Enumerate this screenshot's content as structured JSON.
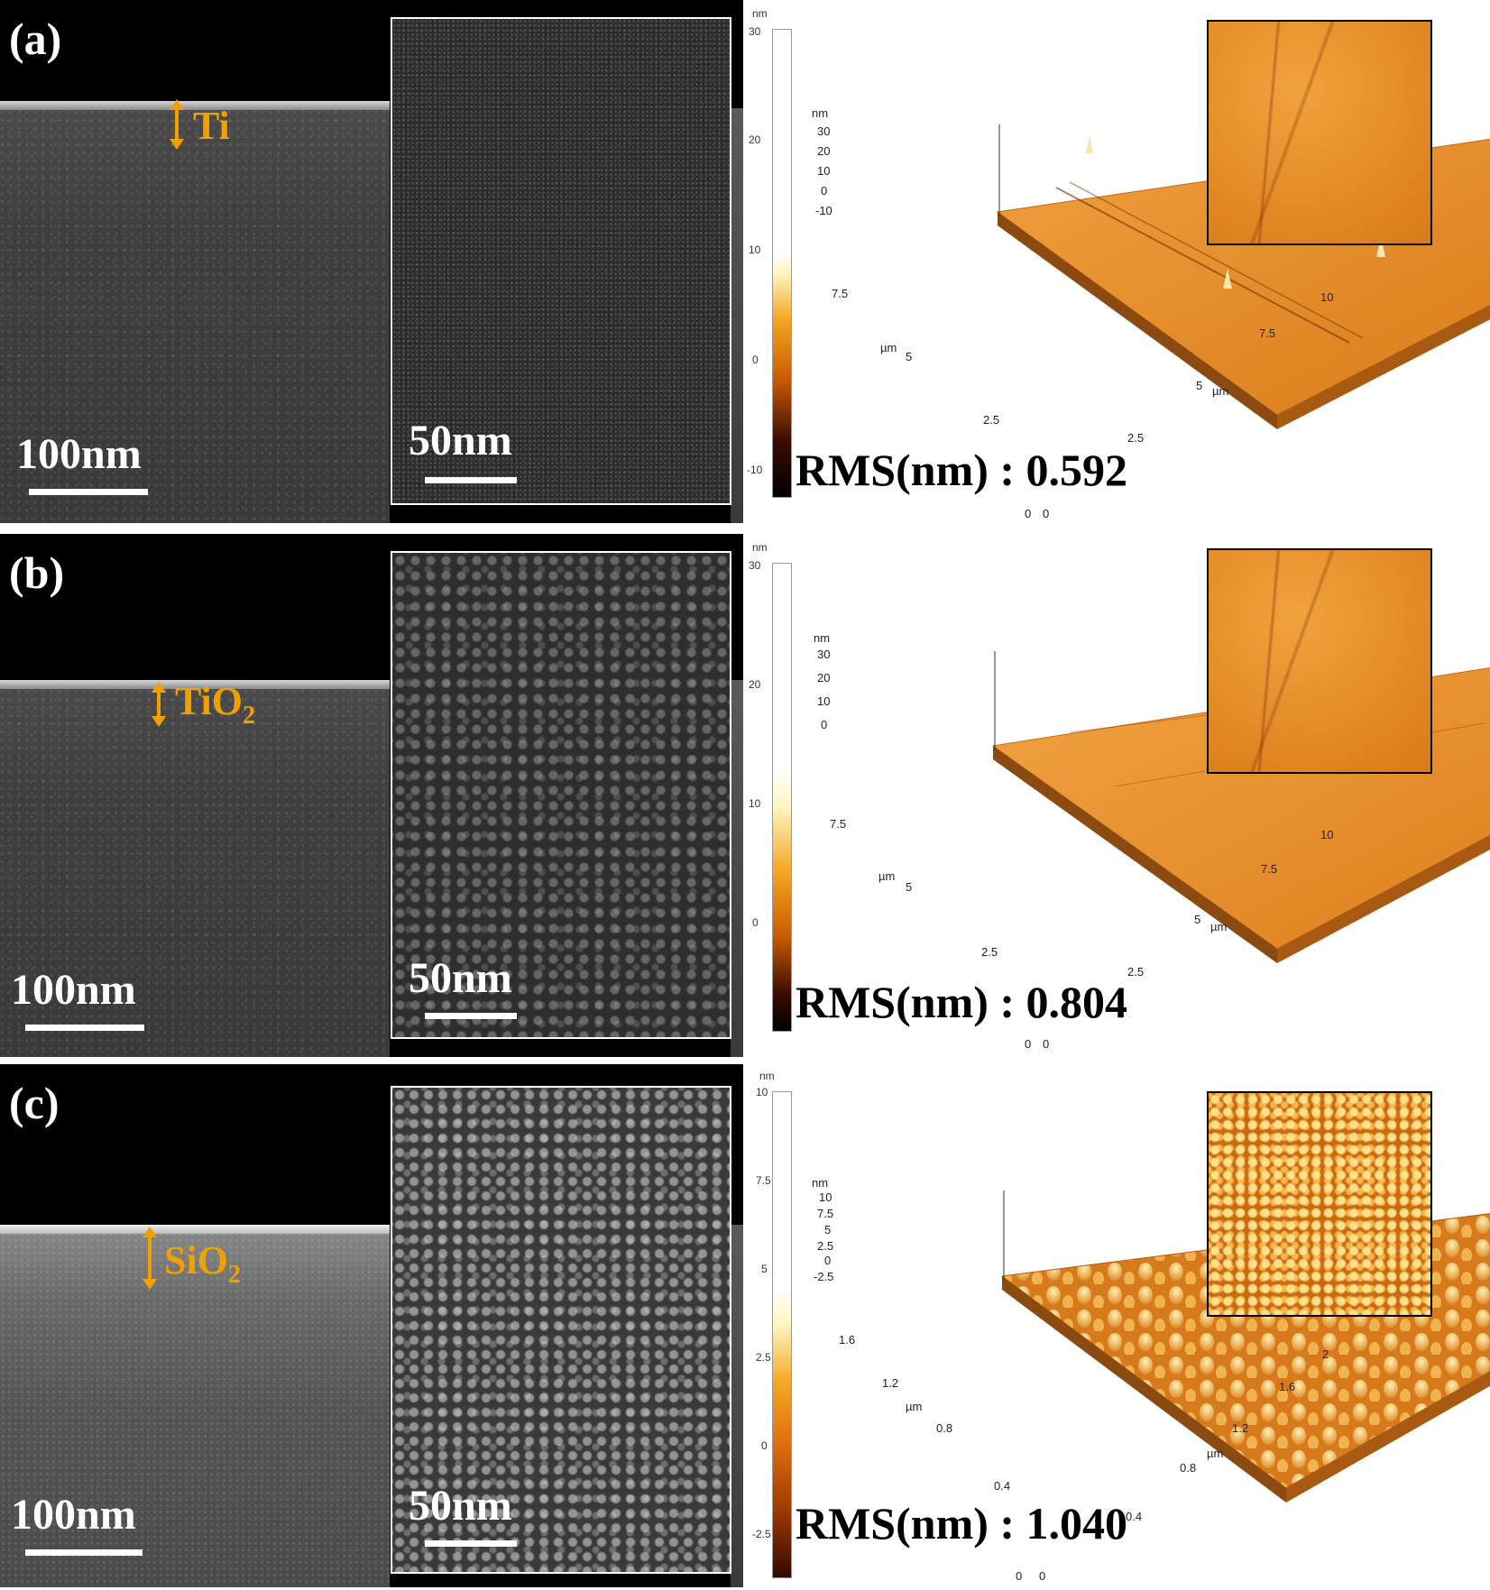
{
  "panels": [
    {
      "label": "(a)",
      "layer": "Ti",
      "layer_sub": "",
      "sem_scale": "100nm",
      "inset_scale": "50nm",
      "rms_label": "RMS(nm)",
      "rms_sep": ":",
      "rms_value": "0.592",
      "cbar_unit": "nm",
      "cbar_ticks": [
        "30",
        "20",
        "10",
        "0",
        "-10"
      ],
      "afm_z_unit": "nm",
      "afm_z_ticks": [
        "30",
        "20",
        "10",
        "0",
        "-10"
      ],
      "afm_xy_unit": "µm",
      "afm_x_ticks": [
        "0",
        "2.5",
        "5",
        "7.5",
        "10"
      ],
      "afm_y_ticks": [
        "0",
        "2.5",
        "5",
        "7.5"
      ]
    },
    {
      "label": "(b)",
      "layer": "TiO",
      "layer_sub": "2",
      "sem_scale": "100nm",
      "inset_scale": "50nm",
      "rms_label": "RMS(nm)",
      "rms_sep": ":",
      "rms_value": "0.804",
      "cbar_unit": "nm",
      "cbar_ticks": [
        "30",
        "20",
        "10",
        "0"
      ],
      "afm_z_unit": "nm",
      "afm_z_ticks": [
        "30",
        "20",
        "10",
        "0"
      ],
      "afm_xy_unit": "µm",
      "afm_x_ticks": [
        "0",
        "2.5",
        "5",
        "7.5",
        "10"
      ],
      "afm_y_ticks": [
        "0",
        "2.5",
        "5",
        "7.5"
      ]
    },
    {
      "label": "(c)",
      "layer": "SiO",
      "layer_sub": "2",
      "sem_scale": "100nm",
      "inset_scale": "50nm",
      "rms_label": "RMS(nm)",
      "rms_sep": ":",
      "rms_value": "1.040",
      "cbar_unit": "nm",
      "cbar_ticks": [
        "10",
        "7.5",
        "5",
        "2.5",
        "0",
        "-2.5"
      ],
      "afm_z_unit": "nm",
      "afm_z_ticks": [
        "10",
        "7.5",
        "5",
        "2.5",
        "0",
        "-2.5"
      ],
      "afm_xy_unit": "µm",
      "afm_x_ticks": [
        "0",
        "0.4",
        "0.8",
        "1.2",
        "1.6",
        "2"
      ],
      "afm_y_ticks": [
        "0",
        "0.4",
        "0.8",
        "1.2",
        "1.6"
      ]
    }
  ],
  "colors": {
    "layer_label": "#f0a000",
    "afm_orange": "#e08a20"
  }
}
